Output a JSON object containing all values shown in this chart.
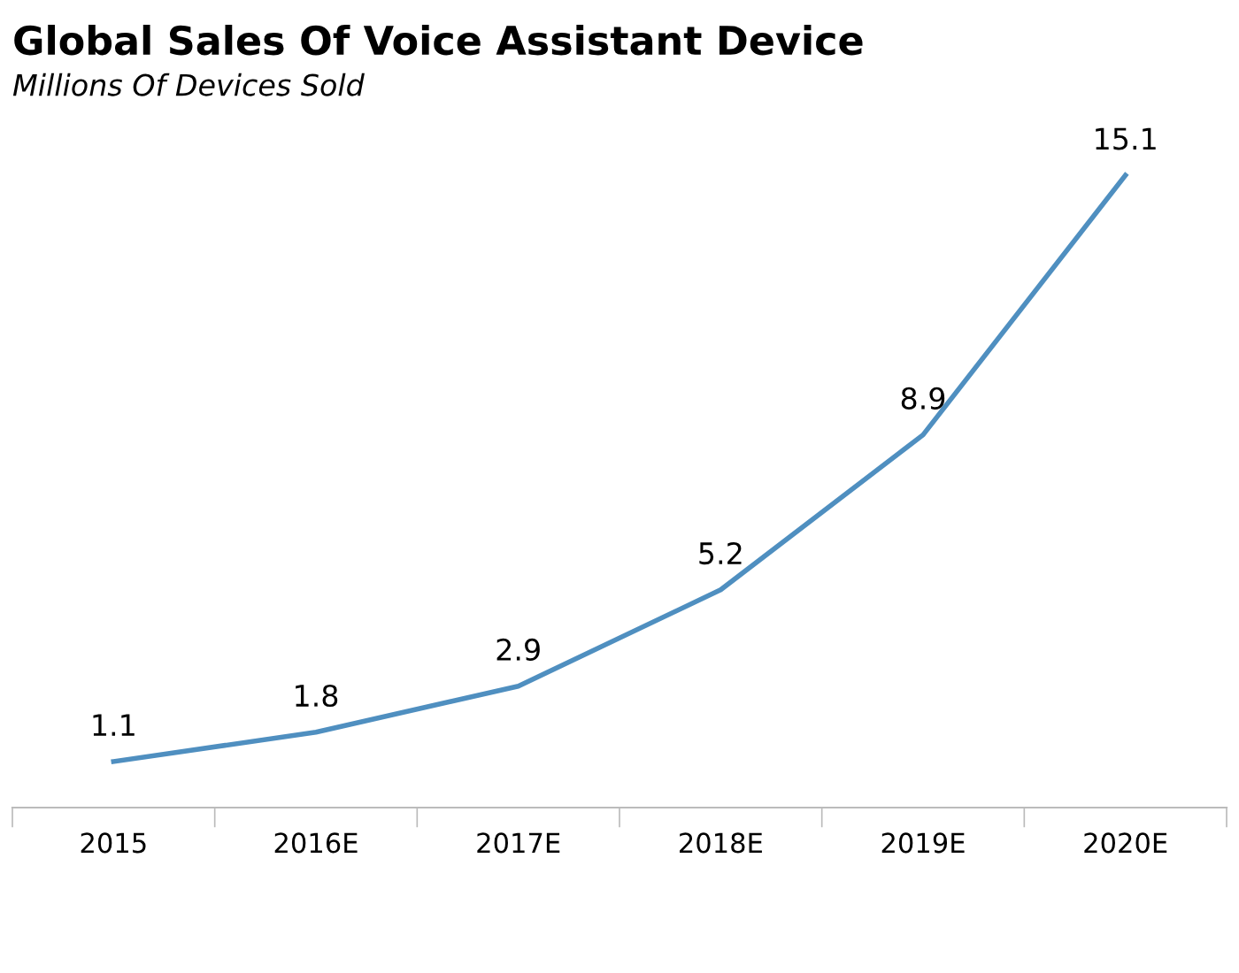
{
  "chart_data": {
    "type": "line",
    "title": "Global Sales Of Voice Assistant Device",
    "subtitle": "Millions Of Devices Sold",
    "categories": [
      "2015",
      "2016E",
      "2017E",
      "2018E",
      "2019E",
      "2020E"
    ],
    "series": [
      {
        "color": "#4f8fc0",
        "values": [
          1.1,
          1.8,
          2.9,
          5.2,
          8.9,
          15.1
        ]
      }
    ],
    "data_labels": true,
    "grid": false,
    "legend": false,
    "marker": "none",
    "line_style": "solid",
    "tick_labels": "x"
  }
}
